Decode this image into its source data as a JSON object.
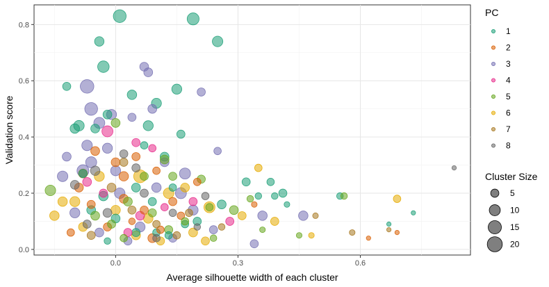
{
  "chart_data": {
    "type": "scatter",
    "title": "",
    "xlabel": "Average silhouette width of each cluster",
    "ylabel": "Validation score",
    "xlim": [
      -0.2,
      0.87
    ],
    "ylim": [
      -0.02,
      0.87
    ],
    "xticks": [
      0.0,
      0.3,
      0.6
    ],
    "yticks": [
      0.0,
      0.2,
      0.4,
      0.6,
      0.8
    ],
    "xtick_labels": [
      "0.0",
      "0.3",
      "0.6"
    ],
    "ytick_labels": [
      "0.0",
      "0.2",
      "0.4",
      "0.6",
      "0.8"
    ],
    "grid": true,
    "legend_placement": "right",
    "color_legend": {
      "title": "PC",
      "entries": [
        {
          "label": "1",
          "color": "#1B9E77"
        },
        {
          "label": "2",
          "color": "#D95F02"
        },
        {
          "label": "3",
          "color": "#7570B3"
        },
        {
          "label": "4",
          "color": "#E7298A"
        },
        {
          "label": "5",
          "color": "#66A61E"
        },
        {
          "label": "6",
          "color": "#E6AB02"
        },
        {
          "label": "7",
          "color": "#A6761D"
        },
        {
          "label": "8",
          "color": "#666666"
        }
      ]
    },
    "size_legend": {
      "title": "Cluster Size",
      "entries": [
        {
          "label": "5",
          "value": 5
        },
        {
          "label": "10",
          "value": 10
        },
        {
          "label": "15",
          "value": 15
        },
        {
          "label": "20",
          "value": 20
        }
      ]
    },
    "series": [
      {
        "name": "1",
        "color": "#1B9E77",
        "points": [
          [
            0.01,
            0.83,
            14
          ],
          [
            0.19,
            0.82,
            12
          ],
          [
            0.25,
            0.74,
            9
          ],
          [
            -0.04,
            0.74,
            7
          ],
          [
            -0.03,
            0.65,
            11
          ],
          [
            -0.12,
            0.58,
            5
          ],
          [
            0.15,
            0.57,
            8
          ],
          [
            0.04,
            0.55,
            7
          ],
          [
            0.1,
            0.52,
            8
          ],
          [
            -0.02,
            0.48,
            6
          ],
          [
            -0.09,
            0.44,
            9
          ],
          [
            0.08,
            0.44,
            8
          ],
          [
            -0.1,
            0.43,
            7
          ],
          [
            -0.05,
            0.43,
            6
          ],
          [
            0.16,
            0.41,
            5
          ],
          [
            0.07,
            0.37,
            4
          ],
          [
            0.12,
            0.33,
            6
          ],
          [
            0.32,
            0.24,
            5
          ],
          [
            0.38,
            0.24,
            4
          ],
          [
            0.41,
            0.2,
            5
          ],
          [
            0.55,
            0.19,
            3
          ],
          [
            0.35,
            0.19,
            3
          ],
          [
            0.39,
            0.19,
            3
          ],
          [
            0.26,
            0.16,
            6
          ],
          [
            0.42,
            0.16,
            2
          ],
          [
            0.73,
            0.13,
            1
          ],
          [
            0.67,
            0.09,
            1
          ],
          [
            0.05,
            0.06,
            5
          ],
          [
            0.13,
            0.05,
            4
          ],
          [
            -0.02,
            0.03,
            3
          ],
          [
            0.2,
            0.1,
            5
          ],
          [
            -0.06,
            0.14,
            6
          ],
          [
            0.1,
            0.06,
            4
          ],
          [
            0.0,
            0.11,
            6
          ],
          [
            0.09,
            0.17,
            5
          ],
          [
            0.17,
            0.09,
            4
          ],
          [
            -0.03,
            0.19,
            7
          ],
          [
            0.05,
            0.22,
            6
          ],
          [
            -0.08,
            0.27,
            5
          ],
          [
            0.14,
            0.22,
            4
          ]
        ]
      },
      {
        "name": "2",
        "color": "#D95F02",
        "points": [
          [
            -0.05,
            0.35,
            6
          ],
          [
            0.02,
            0.26,
            7
          ],
          [
            -0.09,
            0.22,
            6
          ],
          [
            0.07,
            0.14,
            5
          ],
          [
            0.14,
            0.17,
            5
          ],
          [
            0.1,
            0.28,
            4
          ],
          [
            0.0,
            0.31,
            6
          ],
          [
            0.02,
            0.18,
            6
          ],
          [
            -0.02,
            0.08,
            5
          ],
          [
            0.11,
            0.07,
            4
          ],
          [
            0.2,
            0.24,
            4
          ],
          [
            0.04,
            0.1,
            3
          ],
          [
            0.34,
            0.16,
            2
          ],
          [
            0.62,
            0.04,
            1
          ],
          [
            0.69,
            0.06,
            1
          ],
          [
            0.05,
            0.33,
            5
          ],
          [
            -0.11,
            0.06,
            4
          ],
          [
            0.09,
            0.04,
            6
          ],
          [
            0.16,
            0.12,
            4
          ],
          [
            -0.06,
            0.16,
            5
          ]
        ]
      },
      {
        "name": "3",
        "color": "#7570B3",
        "points": [
          [
            -0.07,
            0.58,
            16
          ],
          [
            0.07,
            0.65,
            6
          ],
          [
            0.08,
            0.63,
            6
          ],
          [
            0.21,
            0.56,
            5
          ],
          [
            -0.06,
            0.5,
            14
          ],
          [
            -0.04,
            0.45,
            10
          ],
          [
            -0.01,
            0.48,
            8
          ],
          [
            0.09,
            0.5,
            6
          ],
          [
            0.04,
            0.47,
            5
          ],
          [
            -0.12,
            0.33,
            6
          ],
          [
            -0.07,
            0.37,
            9
          ],
          [
            -0.02,
            0.36,
            8
          ],
          [
            0.25,
            0.35,
            4
          ],
          [
            0.17,
            0.27,
            10
          ],
          [
            0.16,
            0.2,
            10
          ],
          [
            0.46,
            0.12,
            7
          ],
          [
            0.36,
            0.12,
            7
          ],
          [
            0.34,
            0.02,
            5
          ],
          [
            0.19,
            0.14,
            8
          ],
          [
            -0.13,
            0.26,
            9
          ],
          [
            -0.08,
            0.28,
            12
          ],
          [
            0.01,
            0.2,
            9
          ],
          [
            -0.1,
            0.13,
            8
          ],
          [
            0.1,
            0.22,
            7
          ],
          [
            0.06,
            0.08,
            8
          ],
          [
            -0.04,
            0.06,
            6
          ],
          [
            0.03,
            0.03,
            5
          ],
          [
            0.14,
            0.04,
            5
          ],
          [
            0.24,
            0.07,
            5
          ],
          [
            -0.06,
            0.31,
            10
          ],
          [
            0.0,
            0.28,
            8
          ],
          [
            0.12,
            0.31,
            6
          ]
        ]
      },
      {
        "name": "4",
        "color": "#E7298A",
        "points": [
          [
            -0.02,
            0.42,
            10
          ],
          [
            0.05,
            0.38,
            5
          ],
          [
            0.28,
            0.1,
            5
          ],
          [
            0.19,
            0.17,
            5
          ],
          [
            0.06,
            0.12,
            6
          ],
          [
            -0.07,
            0.24,
            6
          ],
          [
            0.03,
            0.06,
            5
          ],
          [
            0.12,
            0.15,
            4
          ],
          [
            0.09,
            0.36,
            4
          ],
          [
            -0.03,
            0.2,
            5
          ]
        ]
      },
      {
        "name": "5",
        "color": "#66A61E",
        "points": [
          [
            -0.16,
            0.21,
            9
          ],
          [
            0.0,
            0.45,
            6
          ],
          [
            0.12,
            0.32,
            6
          ],
          [
            0.21,
            0.25,
            5
          ],
          [
            0.29,
            0.14,
            6
          ],
          [
            0.33,
            0.18,
            3
          ],
          [
            0.56,
            0.19,
            3
          ],
          [
            0.13,
            0.07,
            5
          ],
          [
            0.03,
            0.17,
            6
          ],
          [
            -0.01,
            0.09,
            5
          ],
          [
            0.07,
            0.26,
            5
          ],
          [
            0.17,
            0.1,
            4
          ],
          [
            0.23,
            0.15,
            4
          ],
          [
            0.02,
            0.04,
            4
          ],
          [
            0.24,
            0.04,
            3
          ],
          [
            0.09,
            0.13,
            5
          ],
          [
            0.36,
            0.07,
            2
          ],
          [
            0.45,
            0.05,
            2
          ],
          [
            -0.05,
            0.12,
            6
          ],
          [
            0.14,
            0.26,
            5
          ]
        ]
      },
      {
        "name": "6",
        "color": "#E6AB02",
        "points": [
          [
            0.06,
            0.26,
            14
          ],
          [
            0.13,
            0.2,
            9
          ],
          [
            0.23,
            0.15,
            10
          ],
          [
            -0.1,
            0.17,
            8
          ],
          [
            -0.13,
            0.17,
            7
          ],
          [
            -0.15,
            0.12,
            7
          ],
          [
            0.35,
            0.29,
            4
          ],
          [
            0.39,
            0.1,
            5
          ],
          [
            0.69,
            0.18,
            4
          ],
          [
            0.31,
            0.12,
            5
          ],
          [
            0.19,
            0.06,
            6
          ],
          [
            0.08,
            0.11,
            7
          ],
          [
            -0.04,
            0.26,
            8
          ],
          [
            0.0,
            0.14,
            7
          ],
          [
            0.11,
            0.03,
            5
          ],
          [
            0.22,
            0.03,
            5
          ],
          [
            -0.08,
            0.08,
            6
          ],
          [
            0.17,
            0.22,
            6
          ],
          [
            0.48,
            0.05,
            2
          ],
          [
            0.05,
            0.05,
            6
          ]
        ]
      },
      {
        "name": "7",
        "color": "#A6761D",
        "points": [
          [
            -0.08,
            0.27,
            6
          ],
          [
            -0.01,
            0.22,
            6
          ],
          [
            0.04,
            0.14,
            5
          ],
          [
            0.1,
            0.09,
            4
          ],
          [
            0.18,
            0.13,
            4
          ],
          [
            0.58,
            0.06,
            2
          ],
          [
            0.67,
            0.07,
            1
          ],
          [
            -0.06,
            0.05,
            5
          ],
          [
            0.02,
            0.31,
            5
          ],
          [
            0.15,
            0.05,
            4
          ],
          [
            0.26,
            0.08,
            3
          ],
          [
            0.49,
            0.12,
            2
          ]
        ]
      },
      {
        "name": "8",
        "color": "#666666",
        "points": [
          [
            -0.05,
            0.28,
            7
          ],
          [
            0.02,
            0.34,
            5
          ],
          [
            -0.1,
            0.23,
            6
          ],
          [
            0.07,
            0.2,
            5
          ],
          [
            0.14,
            0.13,
            4
          ],
          [
            0.22,
            0.19,
            4
          ],
          [
            -0.02,
            0.13,
            6
          ],
          [
            0.1,
            0.04,
            4
          ],
          [
            0.83,
            0.29,
            1
          ],
          [
            0.05,
            0.29,
            5
          ],
          [
            -0.07,
            0.09,
            5
          ],
          [
            0.2,
            0.08,
            3
          ]
        ]
      }
    ]
  }
}
